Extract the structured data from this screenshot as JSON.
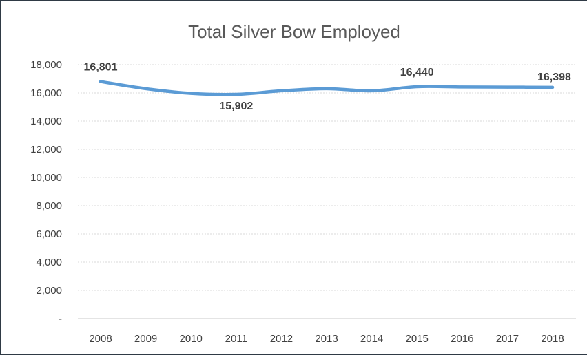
{
  "chart_data": {
    "type": "line",
    "title": "Total Silver Bow Employed",
    "xlabel": "",
    "ylabel": "",
    "categories": [
      "2008",
      "2009",
      "2010",
      "2011",
      "2012",
      "2013",
      "2014",
      "2015",
      "2016",
      "2017",
      "2018"
    ],
    "series": [
      {
        "values": [
          16801,
          16300,
          15970,
          15902,
          16150,
          16300,
          16150,
          16440,
          16420,
          16410,
          16398
        ],
        "color": "#5b9bd5"
      }
    ],
    "ylim": [
      0,
      18000
    ],
    "y_ticks": [
      0,
      2000,
      4000,
      6000,
      8000,
      10000,
      12000,
      14000,
      16000,
      18000
    ],
    "y_tick_labels": [
      "-",
      "2,000",
      "4,000",
      "6,000",
      "8,000",
      "10,000",
      "12,000",
      "14,000",
      "16,000",
      "18,000"
    ],
    "data_labels": [
      {
        "index": 0,
        "text": "16,801",
        "position": "above"
      },
      {
        "index": 3,
        "text": "15,902",
        "position": "below"
      },
      {
        "index": 7,
        "text": "16,440",
        "position": "above"
      },
      {
        "index": 10,
        "text": "16,398",
        "position": "right"
      }
    ],
    "grid": true,
    "legend": "none"
  }
}
